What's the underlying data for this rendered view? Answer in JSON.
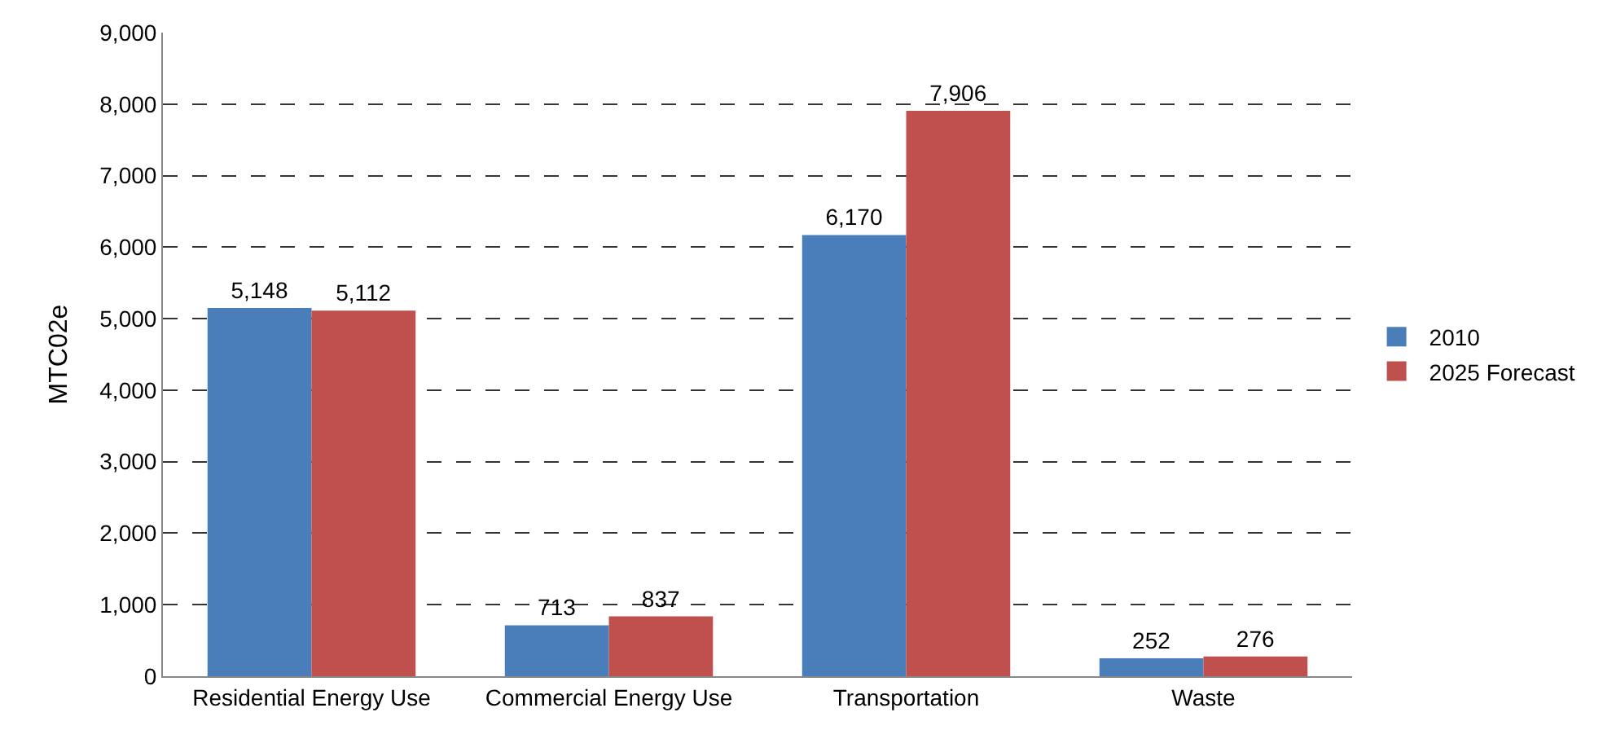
{
  "chart_data": {
    "type": "bar",
    "ylabel": "MTC02e",
    "categories": [
      "Residential Energy Use",
      "Commercial Energy Use",
      "Transportation",
      "Waste"
    ],
    "series": [
      {
        "name": "2010",
        "color": "#4a7ebb",
        "values": [
          5148,
          713,
          6170,
          252
        ],
        "value_labels": [
          "5,148",
          "713",
          "6,170",
          "252"
        ]
      },
      {
        "name": "2025 Forecast",
        "color": "#c0504d",
        "values": [
          5112,
          837,
          7906,
          276
        ],
        "value_labels": [
          "5,112",
          "837",
          "7,906",
          "276"
        ]
      }
    ],
    "ylim": [
      0,
      9000
    ],
    "yticks": [
      0,
      {
        "value": 1000,
        "label": "1,000"
      },
      {
        "value": 2000,
        "label": "2,000"
      },
      {
        "value": 3000,
        "label": "3,000"
      },
      {
        "value": 4000,
        "label": "4,000"
      },
      {
        "value": 5000,
        "label": "5,000"
      },
      {
        "value": 6000,
        "label": "6,000"
      },
      {
        "value": 7000,
        "label": "7,000"
      },
      {
        "value": 8000,
        "label": "8,000"
      },
      {
        "value": 9000,
        "label": "9,000"
      }
    ],
    "grid": "y",
    "legend": "right"
  }
}
